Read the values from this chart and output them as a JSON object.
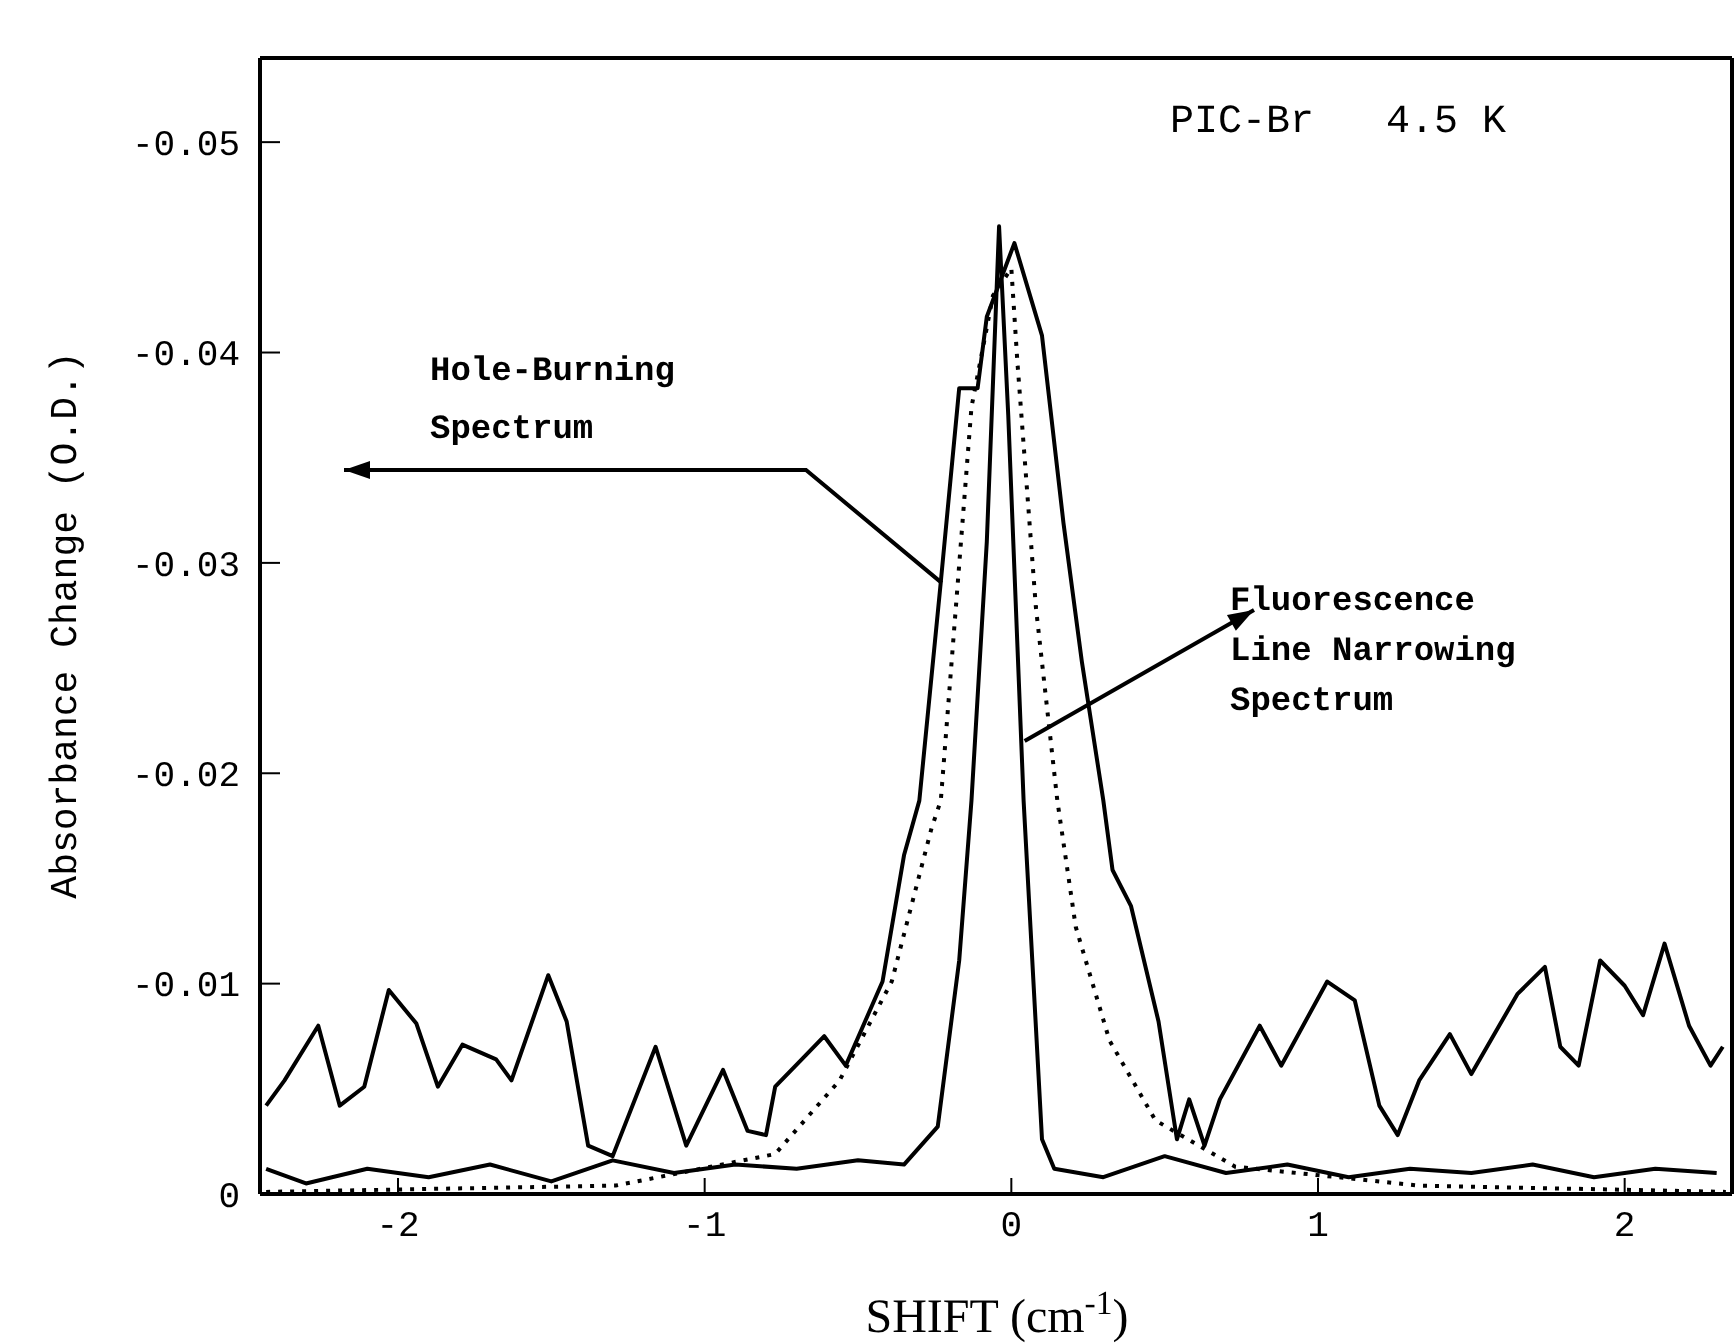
{
  "chart_data": {
    "type": "line",
    "title": "PIC-Br   4.5 K",
    "xlabel": "SHIFT (cm$^{-1}$)",
    "ylabel": "Absorbance Change (O.D.)",
    "annotations": [
      {
        "text": "Hole-Burning\nSpectrum",
        "x": -0.23,
        "y": -0.029
      },
      {
        "text": "Fluorescence\nLine Narrowing\nSpectrum",
        "x": 0.04,
        "y": -0.0215
      }
    ],
    "xlim": [
      -2.45,
      2.35
    ],
    "xticks": [
      -2,
      -1,
      0,
      1,
      2
    ],
    "ylim": [
      0,
      -0.054
    ],
    "yticks": [
      0,
      -0.01,
      -0.02,
      -0.03,
      -0.04,
      -0.05
    ],
    "marker": "none",
    "series": [
      {
        "color": "#000000",
        "line_style": "solid",
        "x": [
          -2.43,
          -2.37,
          -2.26,
          -2.19,
          -2.11,
          -2.03,
          -1.94,
          -1.87,
          -1.79,
          -1.68,
          -1.63,
          -1.51,
          -1.45,
          -1.38,
          -1.3,
          -1.16,
          -1.06,
          -0.94,
          -0.86,
          -0.8,
          -0.77,
          -0.67,
          -0.61,
          -0.54,
          -0.42,
          -0.35,
          -0.3,
          -0.23,
          -0.17,
          -0.11,
          -0.08,
          0.01,
          0.1,
          0.17,
          0.23,
          0.3,
          0.33,
          0.39,
          0.48,
          0.54,
          0.58,
          0.63,
          0.68,
          0.81,
          0.88,
          1.03,
          1.12,
          1.2,
          1.26,
          1.33,
          1.43,
          1.5,
          1.65,
          1.74,
          1.79,
          1.85,
          1.92,
          2.0,
          2.06,
          2.13,
          2.21,
          2.28,
          2.32
        ],
        "values": [
          -0.0042,
          -0.0054,
          -0.008,
          -0.0042,
          -0.0051,
          -0.0097,
          -0.0081,
          -0.0051,
          -0.0071,
          -0.0064,
          -0.0054,
          -0.0104,
          -0.0082,
          -0.0023,
          -0.0018,
          -0.007,
          -0.0023,
          -0.0059,
          -0.003,
          -0.0028,
          -0.0051,
          -0.0066,
          -0.0075,
          -0.0061,
          -0.0101,
          -0.0161,
          -0.0187,
          -0.0291,
          -0.0383,
          -0.0383,
          -0.0417,
          -0.0452,
          -0.0408,
          -0.0319,
          -0.0253,
          -0.0187,
          -0.0154,
          -0.0137,
          -0.0082,
          -0.0026,
          -0.0045,
          -0.0023,
          -0.0045,
          -0.008,
          -0.0061,
          -0.0101,
          -0.0092,
          -0.0042,
          -0.0028,
          -0.0054,
          -0.0076,
          -0.0057,
          -0.0095,
          -0.0108,
          -0.007,
          -0.0061,
          -0.0111,
          -0.0099,
          -0.0085,
          -0.0119,
          -0.008,
          -0.0061,
          -0.007
        ]
      },
      {
        "color": "#000000",
        "line_style": "solid",
        "x": [
          -2.43,
          -2.3,
          -2.1,
          -1.9,
          -1.7,
          -1.5,
          -1.3,
          -1.1,
          -0.9,
          -0.7,
          -0.5,
          -0.35,
          -0.24,
          -0.17,
          -0.13,
          -0.08,
          -0.04,
          -0.01,
          0.02,
          0.04,
          0.1,
          0.14,
          0.3,
          0.5,
          0.7,
          0.9,
          1.1,
          1.3,
          1.5,
          1.7,
          1.9,
          2.1,
          2.3
        ],
        "values": [
          -0.0012,
          -0.0005,
          -0.0012,
          -0.0008,
          -0.0014,
          -0.0006,
          -0.0016,
          -0.001,
          -0.0014,
          -0.0012,
          -0.0016,
          -0.0014,
          -0.0032,
          -0.0111,
          -0.0187,
          -0.031,
          -0.046,
          -0.037,
          -0.026,
          -0.0187,
          -0.0026,
          -0.0012,
          -0.0008,
          -0.0018,
          -0.001,
          -0.0014,
          -0.0008,
          -0.0012,
          -0.001,
          -0.0014,
          -0.0008,
          -0.0012,
          -0.001
        ]
      },
      {
        "color": "#000000",
        "line_style": "dotted",
        "x": [
          -2.43,
          -1.29,
          -0.77,
          -0.56,
          -0.39,
          -0.26,
          -0.23,
          -0.13,
          -0.06,
          0.0,
          0.02,
          0.08,
          0.15,
          0.21,
          0.32,
          0.47,
          0.73,
          1.33,
          2.33
        ],
        "values": [
          -0.0001,
          -0.0004,
          -0.0019,
          -0.0054,
          -0.0101,
          -0.0174,
          -0.0187,
          -0.0374,
          -0.0427,
          -0.044,
          -0.0395,
          -0.0279,
          -0.0187,
          -0.0127,
          -0.0073,
          -0.0035,
          -0.0013,
          -0.0004,
          -0.0001
        ]
      }
    ]
  }
}
